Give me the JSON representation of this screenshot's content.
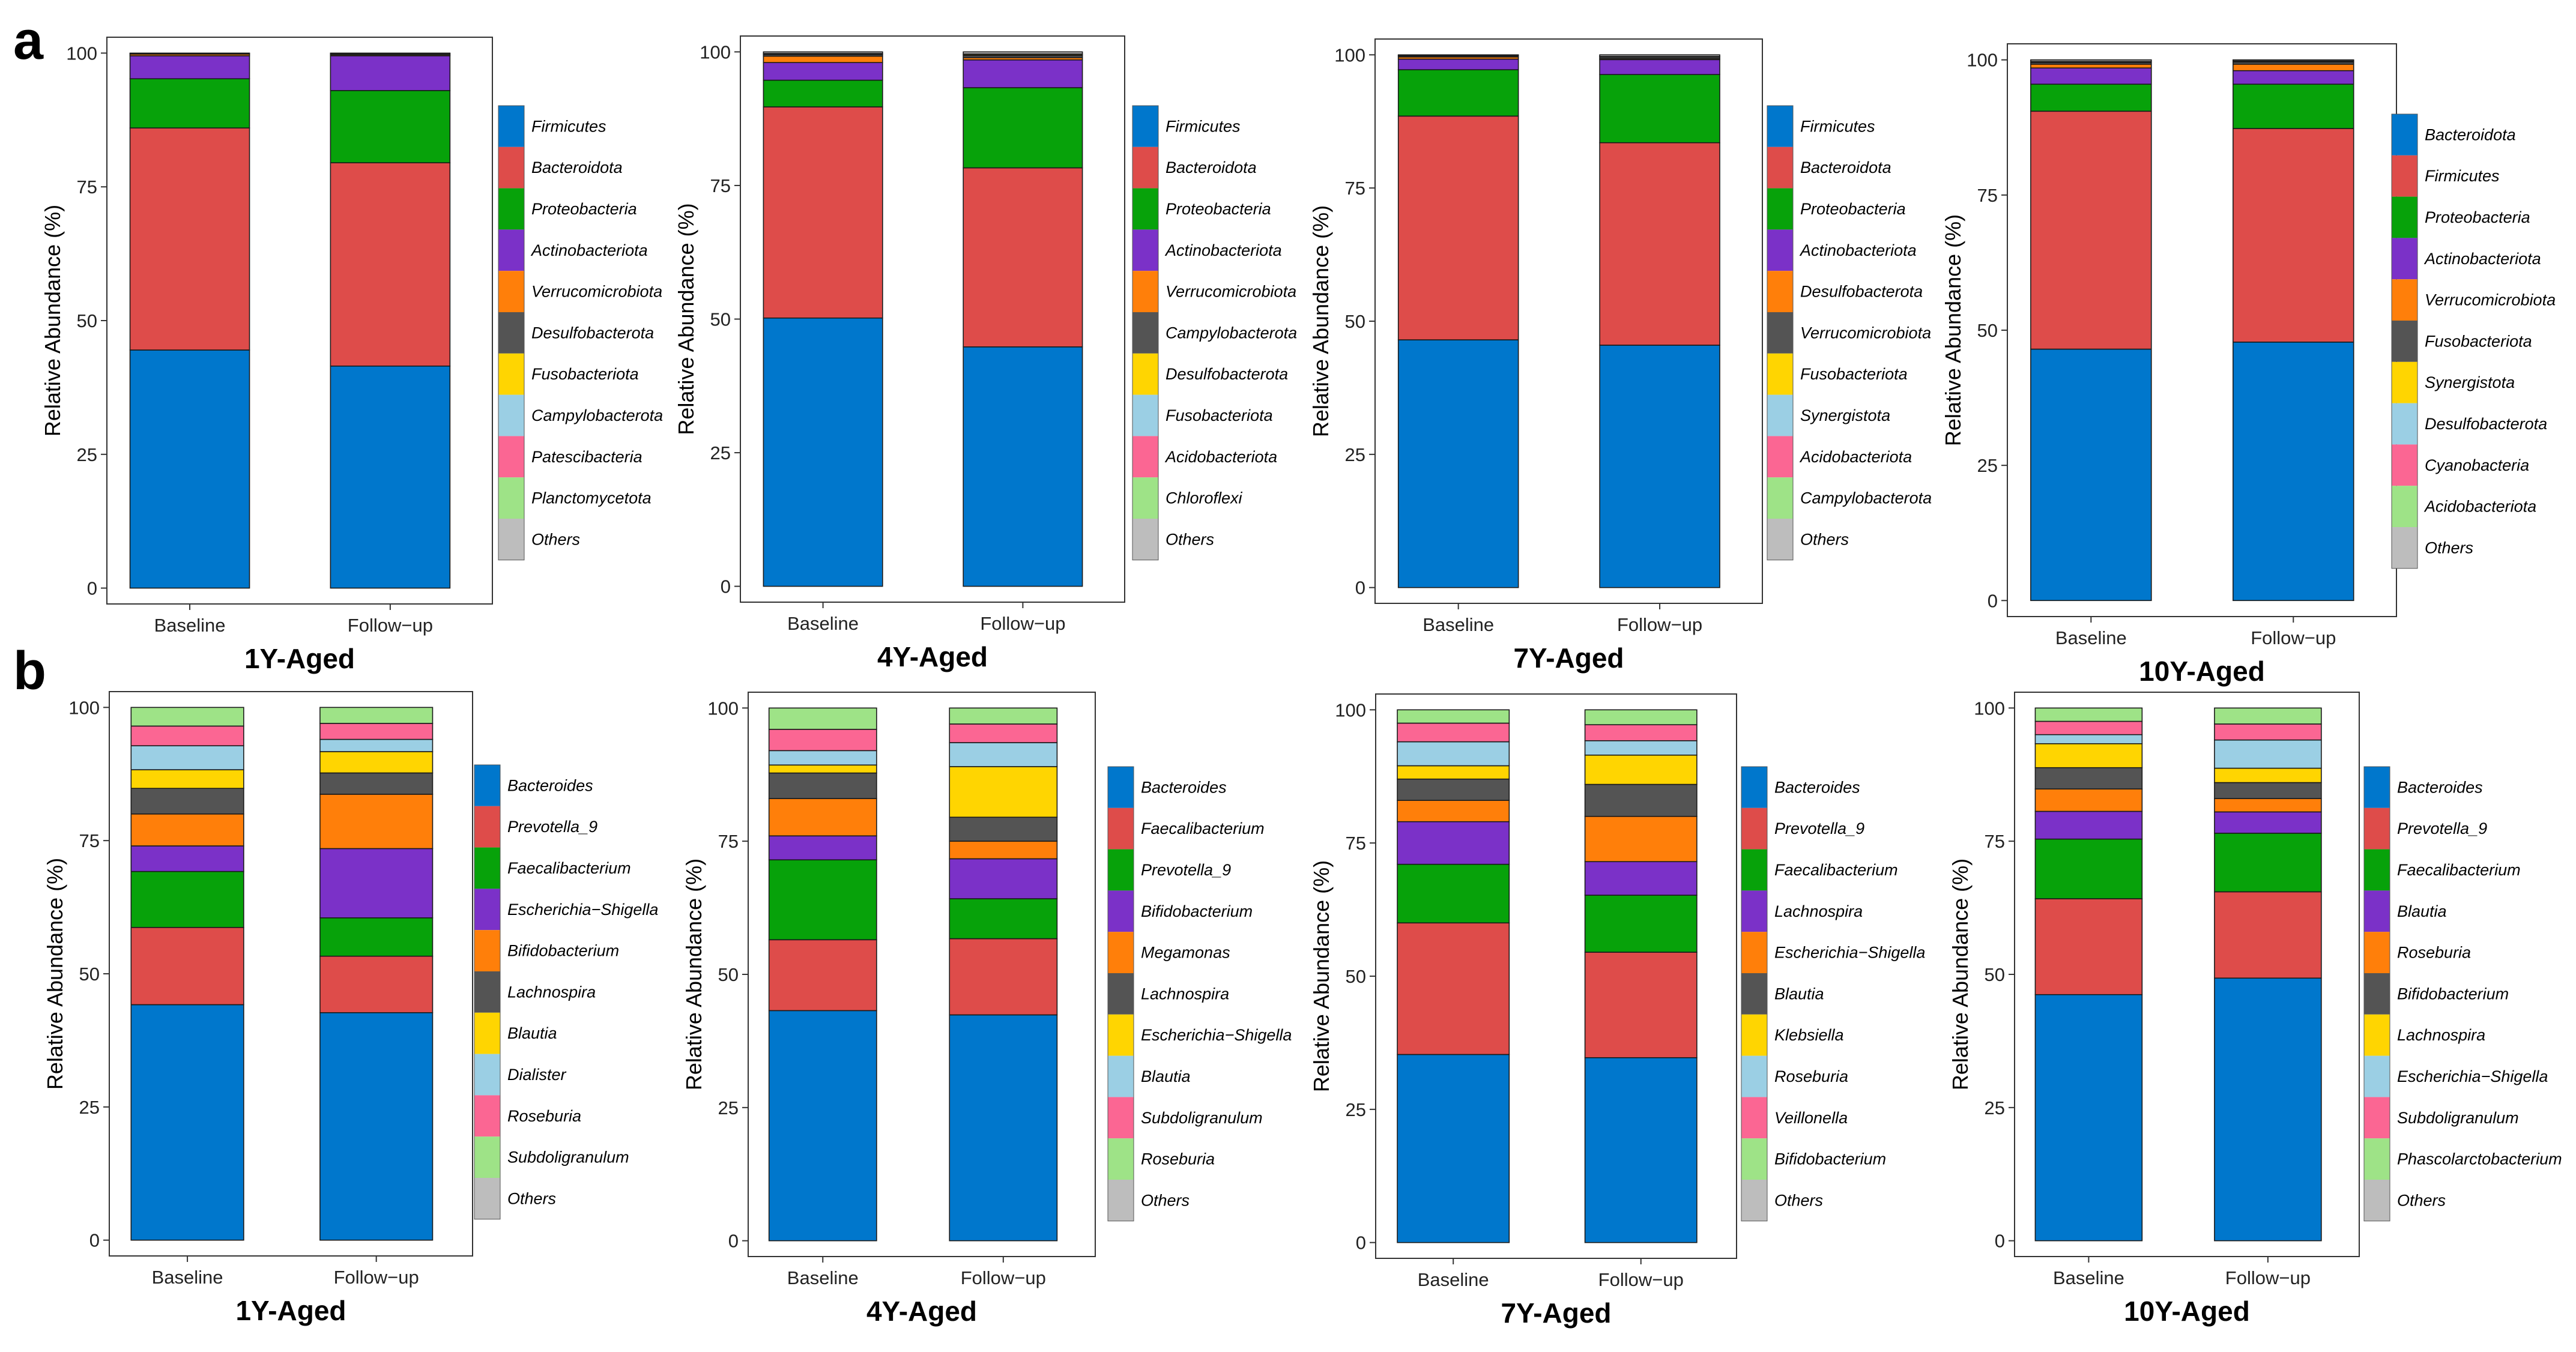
{
  "panel_labels": [
    "a",
    "b"
  ],
  "colors": [
    "#0077CC",
    "#DE4C4A",
    "#07A20A",
    "#7B31C8",
    "#FF7F0A",
    "#545454",
    "#FFD501",
    "#9BCFE4",
    "#FB6693",
    "#9EE387",
    "#BDBDBD"
  ],
  "chart_data": [
    {
      "type": "bar",
      "stacked": true,
      "title": "1Y-Aged",
      "categories": [
        "Baseline",
        "Follow−up"
      ],
      "xlabel": "",
      "ylabel": "Relative Abundance (%)",
      "ylim": [
        0,
        100
      ],
      "yticks": [
        "0",
        "25",
        "50",
        "75",
        "100"
      ],
      "series": [
        {
          "name": "Firmicutes",
          "values": [
            44.5,
            41.5
          ]
        },
        {
          "name": "Bacteroidota",
          "values": [
            41.5,
            38
          ]
        },
        {
          "name": "Proteobacteria",
          "values": [
            9.2,
            13.5
          ]
        },
        {
          "name": "Actinobacteriota",
          "values": [
            4.3,
            6.5
          ]
        },
        {
          "name": "Verrucomicrobiota",
          "values": [
            0.3,
            0.2
          ]
        },
        {
          "name": "Desulfobacterota",
          "values": [
            0.1,
            0.2
          ]
        },
        {
          "name": "Fusobacteriota",
          "values": [
            0,
            0
          ]
        },
        {
          "name": "Campylobacterota",
          "values": [
            0,
            0
          ]
        },
        {
          "name": "Patescibacteria",
          "values": [
            0,
            0
          ]
        },
        {
          "name": "Planctomycetota",
          "values": [
            0,
            0
          ]
        },
        {
          "name": "Others",
          "values": [
            0.1,
            0.1
          ]
        }
      ]
    },
    {
      "type": "bar",
      "stacked": true,
      "title": "4Y-Aged",
      "categories": [
        "Baseline",
        "Follow−up"
      ],
      "xlabel": "",
      "ylabel": "Relative Abundance (%)",
      "ylim": [
        0,
        100
      ],
      "yticks": [
        "0",
        "25",
        "50",
        "75",
        "100"
      ],
      "series": [
        {
          "name": "Firmicutes",
          "values": [
            50.2,
            44.8
          ]
        },
        {
          "name": "Bacteroidota",
          "values": [
            39.5,
            33.5
          ]
        },
        {
          "name": "Proteobacteria",
          "values": [
            5,
            15
          ]
        },
        {
          "name": "Actinobacteriota",
          "values": [
            3.3,
            5.2
          ]
        },
        {
          "name": "Verrucomicrobiota",
          "values": [
            1.2,
            0.4
          ]
        },
        {
          "name": "Campylobacterota",
          "values": [
            0.3,
            0.4
          ]
        },
        {
          "name": "Desulfobacterota",
          "values": [
            0.1,
            0.2
          ]
        },
        {
          "name": "Fusobacteriota",
          "values": [
            0.1,
            0.1
          ]
        },
        {
          "name": "Acidobacteriota",
          "values": [
            0,
            0
          ]
        },
        {
          "name": "Chloroflexi",
          "values": [
            0,
            0
          ]
        },
        {
          "name": "Others",
          "values": [
            0.3,
            0.4
          ]
        }
      ]
    },
    {
      "type": "bar",
      "stacked": true,
      "title": "7Y-Aged",
      "categories": [
        "Baseline",
        "Follow−up"
      ],
      "xlabel": "",
      "ylabel": "Relative Abundance (%)",
      "ylim": [
        0,
        100
      ],
      "yticks": [
        "0",
        "25",
        "50",
        "75",
        "100"
      ],
      "series": [
        {
          "name": "Firmicutes",
          "values": [
            46.5,
            45.5
          ]
        },
        {
          "name": "Bacteroidota",
          "values": [
            42,
            38
          ]
        },
        {
          "name": "Proteobacteria",
          "values": [
            8.7,
            12.8
          ]
        },
        {
          "name": "Actinobacteriota",
          "values": [
            2,
            2.8
          ]
        },
        {
          "name": "Desulfobacterota",
          "values": [
            0.4,
            0.2
          ]
        },
        {
          "name": "Verrucomicrobiota",
          "values": [
            0.2,
            0.3
          ]
        },
        {
          "name": "Fusobacteriota",
          "values": [
            0.1,
            0.1
          ]
        },
        {
          "name": "Synergistota",
          "values": [
            0,
            0
          ]
        },
        {
          "name": "Acidobacteriota",
          "values": [
            0,
            0
          ]
        },
        {
          "name": "Campylobacterota",
          "values": [
            0,
            0
          ]
        },
        {
          "name": "Others",
          "values": [
            0.1,
            0.3
          ]
        }
      ]
    },
    {
      "type": "bar",
      "stacked": true,
      "title": "10Y-Aged",
      "categories": [
        "Baseline",
        "Follow−up"
      ],
      "xlabel": "",
      "ylabel": "Relative Abundance (%)",
      "ylim": [
        0,
        100
      ],
      "yticks": [
        "0",
        "25",
        "50",
        "75",
        "100"
      ],
      "series": [
        {
          "name": "Bacteroidota",
          "values": [
            46.5,
            47.8
          ]
        },
        {
          "name": "Firmicutes",
          "values": [
            44,
            39.5
          ]
        },
        {
          "name": "Proteobacteria",
          "values": [
            5,
            8.2
          ]
        },
        {
          "name": "Actinobacteriota",
          "values": [
            3,
            2.5
          ]
        },
        {
          "name": "Verrucomicrobiota",
          "values": [
            0.7,
            1.2
          ]
        },
        {
          "name": "Fusobacteriota",
          "values": [
            0.3,
            0.4
          ]
        },
        {
          "name": "Synergistota",
          "values": [
            0.1,
            0.1
          ]
        },
        {
          "name": "Desulfobacterota",
          "values": [
            0.1,
            0.1
          ]
        },
        {
          "name": "Cyanobacteria",
          "values": [
            0,
            0
          ]
        },
        {
          "name": "Acidobacteriota",
          "values": [
            0,
            0
          ]
        },
        {
          "name": "Others",
          "values": [
            0.3,
            0.2
          ]
        }
      ]
    },
    {
      "type": "bar",
      "stacked": true,
      "title": "1Y-Aged",
      "categories": [
        "Baseline",
        "Follow−up"
      ],
      "xlabel": "",
      "ylabel": "Relative Abundance (%)",
      "ylim": [
        0,
        100
      ],
      "yticks": [
        "0",
        "25",
        "50",
        "75",
        "100"
      ],
      "series": [
        {
          "name": "Bacteroides",
          "values": [
            44.2,
            42.7
          ]
        },
        {
          "name": "Prevotella_9",
          "values": [
            14.5,
            10.6
          ]
        },
        {
          "name": "Faecalibacterium",
          "values": [
            10.5,
            7.2
          ]
        },
        {
          "name": "Escherichia−Shigella",
          "values": [
            4.8,
            13
          ]
        },
        {
          "name": "Bifidobacterium",
          "values": [
            6,
            10.2
          ]
        },
        {
          "name": "Lachnospira",
          "values": [
            4.8,
            4
          ]
        },
        {
          "name": "Blautia",
          "values": [
            3.5,
            4
          ]
        },
        {
          "name": "Dialister",
          "values": [
            4.5,
            2.3
          ]
        },
        {
          "name": "Roseburia",
          "values": [
            3.7,
            3
          ]
        },
        {
          "name": "Subdoligranulum",
          "values": [
            3.5,
            3
          ]
        },
        {
          "name": "Others",
          "values": [
            0,
            0
          ]
        }
      ]
    },
    {
      "type": "bar",
      "stacked": true,
      "title": "4Y-Aged",
      "categories": [
        "Baseline",
        "Follow−up"
      ],
      "xlabel": "",
      "ylabel": "Relative Abundance (%)",
      "ylim": [
        0,
        100
      ],
      "yticks": [
        "0",
        "25",
        "50",
        "75",
        "100"
      ],
      "series": [
        {
          "name": "Bacteroides",
          "values": [
            43.2,
            42.4
          ]
        },
        {
          "name": "Faecalibacterium",
          "values": [
            13.3,
            14.3
          ]
        },
        {
          "name": "Prevotella_9",
          "values": [
            15,
            7.5
          ]
        },
        {
          "name": "Bifidobacterium",
          "values": [
            4.5,
            7.5
          ]
        },
        {
          "name": "Megamonas",
          "values": [
            7,
            3.3
          ]
        },
        {
          "name": "Lachnospira",
          "values": [
            4.8,
            4.5
          ]
        },
        {
          "name": "Escherichia−Shigella",
          "values": [
            1.5,
            9.5
          ]
        },
        {
          "name": "Blautia",
          "values": [
            2.7,
            4.5
          ]
        },
        {
          "name": "Subdoligranulum",
          "values": [
            4,
            3.5
          ]
        },
        {
          "name": "Roseburia",
          "values": [
            4,
            3
          ]
        },
        {
          "name": "Others",
          "values": [
            0,
            0
          ]
        }
      ]
    },
    {
      "type": "bar",
      "stacked": true,
      "title": "7Y-Aged",
      "categories": [
        "Baseline",
        "Follow−up"
      ],
      "xlabel": "",
      "ylabel": "Relative Abundance (%)",
      "ylim": [
        0,
        100
      ],
      "yticks": [
        "0",
        "25",
        "50",
        "75",
        "100"
      ],
      "series": [
        {
          "name": "Bacteroides",
          "values": [
            35.3,
            34.7
          ]
        },
        {
          "name": "Prevotella_9",
          "values": [
            24.7,
            19.8
          ]
        },
        {
          "name": "Faecalibacterium",
          "values": [
            11,
            10.7
          ]
        },
        {
          "name": "Lachnospira",
          "values": [
            8,
            6.3
          ]
        },
        {
          "name": "Escherichia−Shigella",
          "values": [
            4,
            8.5
          ]
        },
        {
          "name": "Blautia",
          "values": [
            4,
            6
          ]
        },
        {
          "name": "Klebsiella",
          "values": [
            2.5,
            5.5
          ]
        },
        {
          "name": "Roseburia",
          "values": [
            4.5,
            2.7
          ]
        },
        {
          "name": "Veillonella",
          "values": [
            3.5,
            3
          ]
        },
        {
          "name": "Bifidobacterium",
          "values": [
            2.5,
            2.8
          ]
        },
        {
          "name": "Others",
          "values": [
            0,
            0
          ]
        }
      ]
    },
    {
      "type": "bar",
      "stacked": true,
      "title": "10Y-Aged",
      "categories": [
        "Baseline",
        "Follow−up"
      ],
      "xlabel": "",
      "ylabel": "Relative Abundance (%)",
      "ylim": [
        0,
        100
      ],
      "yticks": [
        "0",
        "25",
        "50",
        "75",
        "100"
      ],
      "series": [
        {
          "name": "Bacteroides",
          "values": [
            46.2,
            49.3
          ]
        },
        {
          "name": "Prevotella_9",
          "values": [
            18,
            16.2
          ]
        },
        {
          "name": "Faecalibacterium",
          "values": [
            11.2,
            11
          ]
        },
        {
          "name": "Blautia",
          "values": [
            5.2,
            4
          ]
        },
        {
          "name": "Roseburia",
          "values": [
            4.2,
            2.5
          ]
        },
        {
          "name": "Bifidobacterium",
          "values": [
            4,
            3
          ]
        },
        {
          "name": "Lachnospira",
          "values": [
            4.5,
            2.7
          ]
        },
        {
          "name": "Escherichia−Shigella",
          "values": [
            1.7,
            5.3
          ]
        },
        {
          "name": "Subdoligranulum",
          "values": [
            2.5,
            3
          ]
        },
        {
          "name": "Phascolarctobacterium",
          "values": [
            2.5,
            3
          ]
        },
        {
          "name": "Others",
          "values": [
            0,
            0
          ]
        }
      ]
    }
  ]
}
